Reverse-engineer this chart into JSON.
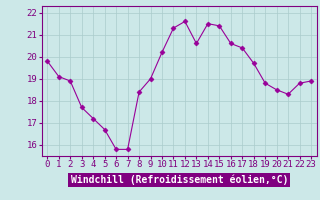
{
  "x": [
    0,
    1,
    2,
    3,
    4,
    5,
    6,
    7,
    8,
    9,
    10,
    11,
    12,
    13,
    14,
    15,
    16,
    17,
    18,
    19,
    20,
    21,
    22,
    23
  ],
  "y": [
    19.8,
    19.1,
    18.9,
    17.7,
    17.2,
    16.7,
    15.8,
    15.8,
    18.4,
    19.0,
    20.2,
    21.3,
    21.6,
    20.6,
    21.5,
    21.4,
    20.6,
    20.4,
    19.7,
    18.8,
    18.5,
    18.3,
    18.8,
    18.9
  ],
  "line_color": "#990099",
  "marker": "D",
  "marker_size": 2.5,
  "bg_color": "#cce8e8",
  "grid_color": "#aacccc",
  "xlabel": "Windchill (Refroidissement éolien,°C)",
  "xlabel_fontsize": 7,
  "tick_fontsize": 6.5,
  "ylim": [
    15.5,
    22.3
  ],
  "xlim": [
    -0.5,
    23.5
  ],
  "yticks": [
    16,
    17,
    18,
    19,
    20,
    21,
    22
  ],
  "xticks": [
    0,
    1,
    2,
    3,
    4,
    5,
    6,
    7,
    8,
    9,
    10,
    11,
    12,
    13,
    14,
    15,
    16,
    17,
    18,
    19,
    20,
    21,
    22,
    23
  ],
  "xlabel_bg": "#800080",
  "xlabel_fg": "#ffffff",
  "axis_color": "#800080",
  "tick_color": "#800080"
}
